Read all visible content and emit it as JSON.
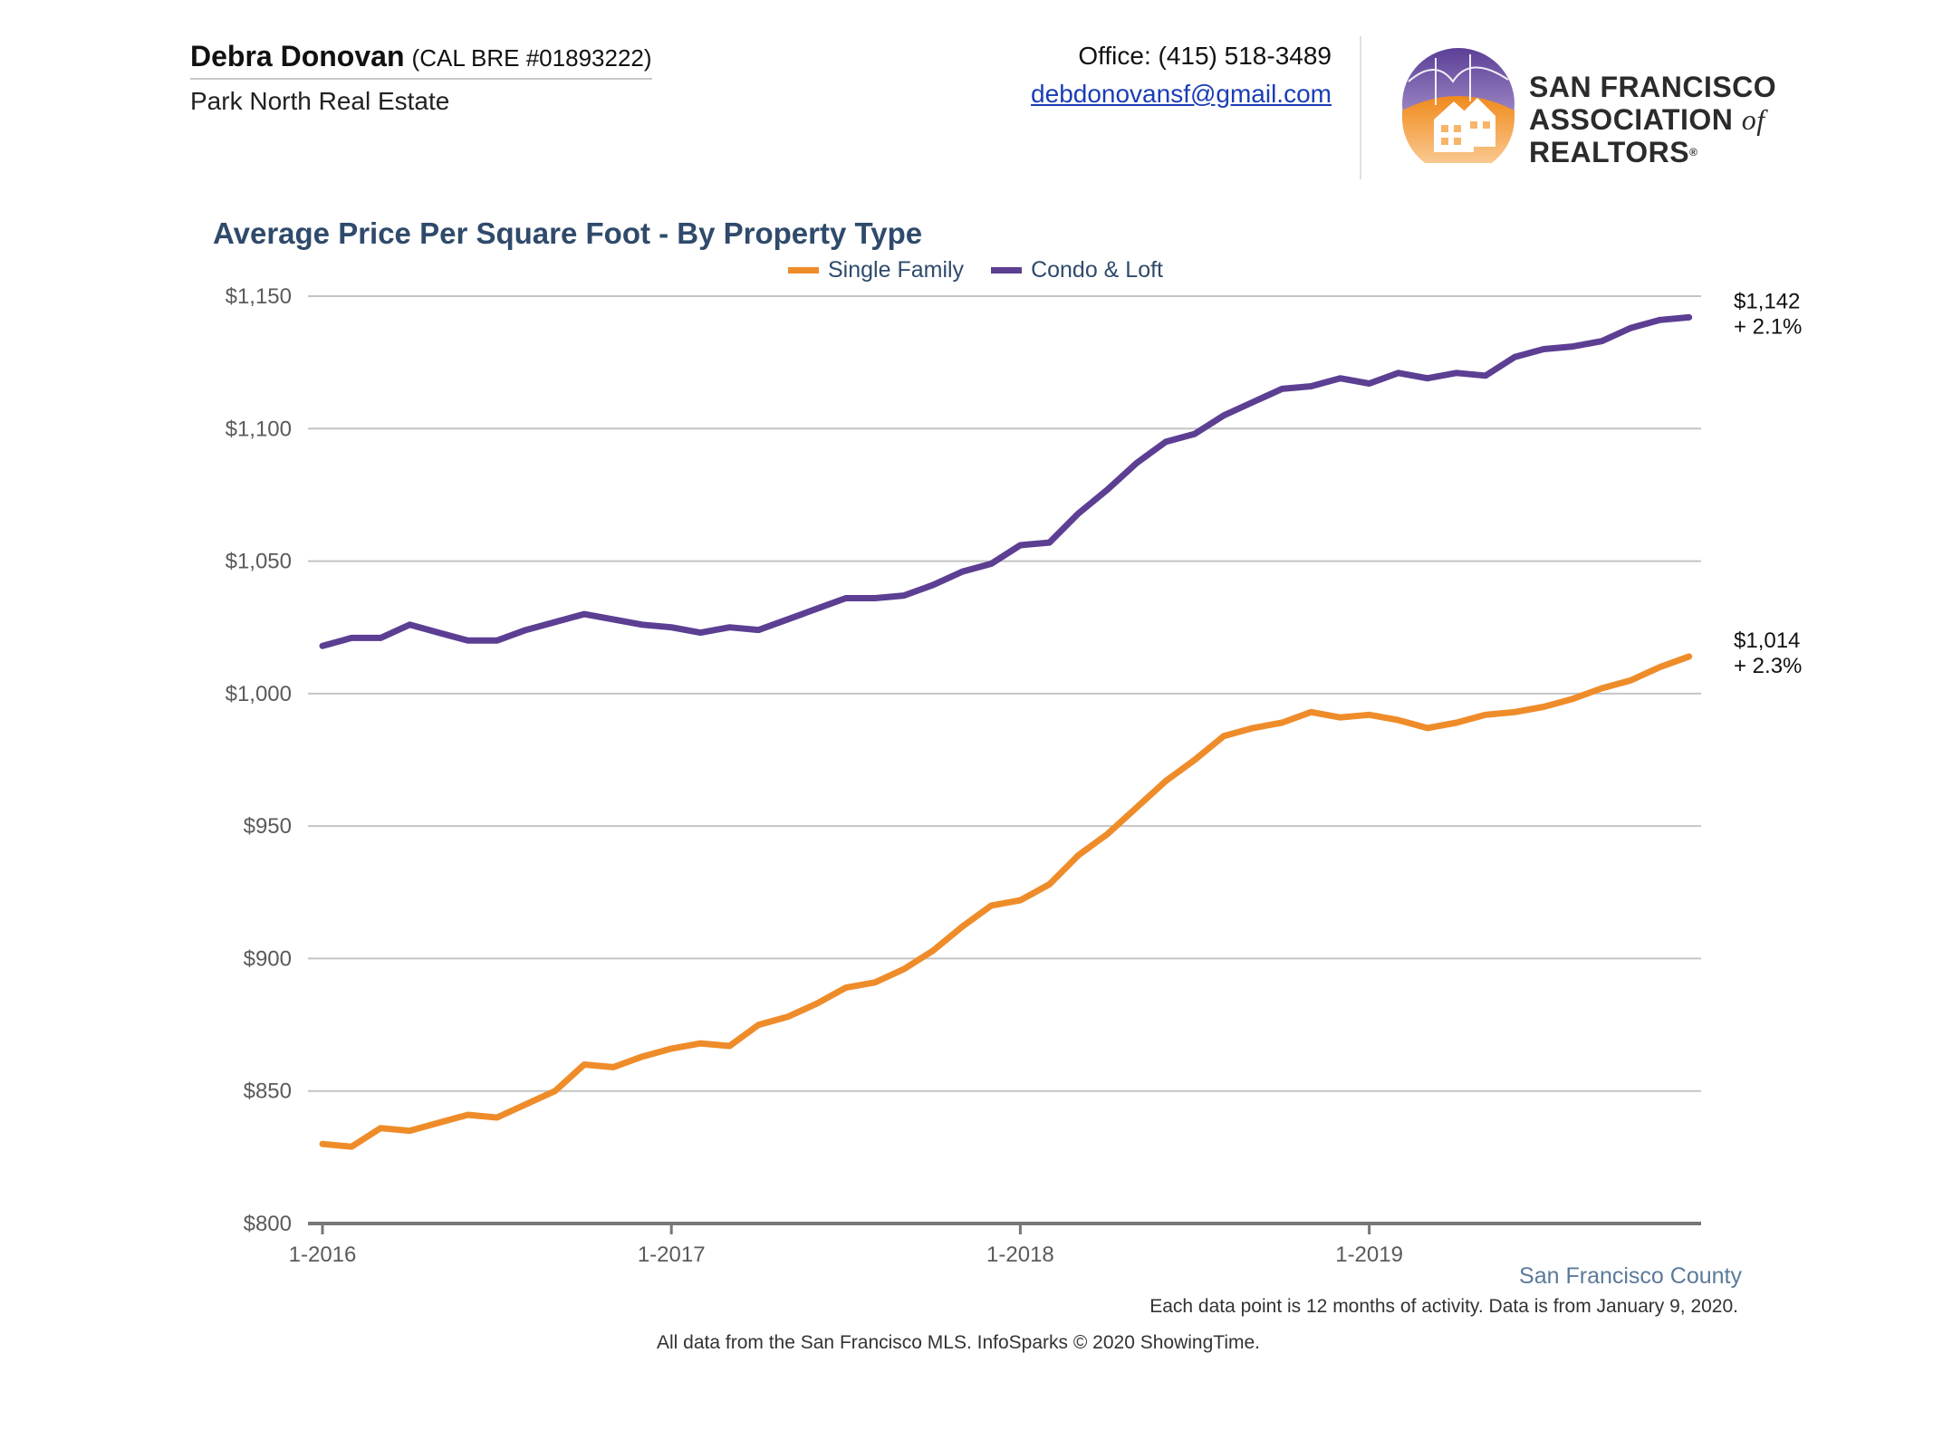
{
  "agent": {
    "name": "Debra Donovan",
    "license": "(CAL BRE #01893222)",
    "company": "Park North Real Estate"
  },
  "contact": {
    "phone": "Office: (415) 518-3489",
    "email": "debdonovansf@gmail.com"
  },
  "logo": {
    "line1": "SAN FRANCISCO",
    "line2a": "ASSOCIATION",
    "line2b": "of",
    "line2c": "REALTORS",
    "reg": "®"
  },
  "colors": {
    "single_family": "#ef8c2a",
    "condo_loft": "#5c3f93",
    "grid": "#c4c4c4",
    "axis": "#777777"
  },
  "chart_data": {
    "type": "line",
    "title": "Average Price Per Square Foot - By Property Type",
    "xlabel": "",
    "ylabel": "",
    "ylim": [
      800,
      1150
    ],
    "y_ticks": [
      800,
      850,
      900,
      950,
      1000,
      1050,
      1100,
      1150
    ],
    "y_tick_labels": [
      "$800",
      "$850",
      "$900",
      "$950",
      "$1,000",
      "$1,050",
      "$1,100",
      "$1,150"
    ],
    "x_tick_labels": [
      "1-2016",
      "1-2017",
      "1-2018",
      "1-2019"
    ],
    "x_start": "1-2016",
    "x_end": "12-2019",
    "legend_position": "top-center",
    "grid": true,
    "series": [
      {
        "name": "Single Family",
        "color": "#ef8c2a",
        "values": [
          830,
          829,
          836,
          835,
          838,
          841,
          840,
          845,
          850,
          860,
          859,
          863,
          866,
          868,
          867,
          875,
          878,
          883,
          889,
          891,
          896,
          903,
          912,
          920,
          922,
          928,
          939,
          947,
          957,
          967,
          975,
          984,
          987,
          989,
          993,
          991,
          992,
          990,
          987,
          989,
          992,
          993,
          995,
          998,
          1002,
          1005,
          1010,
          1014
        ],
        "end_value": "$1,014",
        "end_change": "+ 2.3%"
      },
      {
        "name": "Condo & Loft",
        "color": "#5c3f93",
        "values": [
          1018,
          1021,
          1021,
          1026,
          1023,
          1020,
          1020,
          1024,
          1027,
          1030,
          1028,
          1026,
          1025,
          1023,
          1025,
          1024,
          1028,
          1032,
          1036,
          1036,
          1037,
          1041,
          1046,
          1049,
          1056,
          1057,
          1068,
          1077,
          1087,
          1095,
          1098,
          1105,
          1110,
          1115,
          1116,
          1119,
          1117,
          1121,
          1119,
          1121,
          1120,
          1127,
          1130,
          1131,
          1133,
          1138,
          1141,
          1142
        ],
        "end_value": "$1,142",
        "end_change": "+ 2.1%"
      }
    ]
  },
  "footer": {
    "region": "San Francisco County",
    "note": "Each data point is 12 months of activity. Data is from January 9, 2020.",
    "source": "All data from the San Francisco MLS. InfoSparks © 2020 ShowingTime."
  }
}
